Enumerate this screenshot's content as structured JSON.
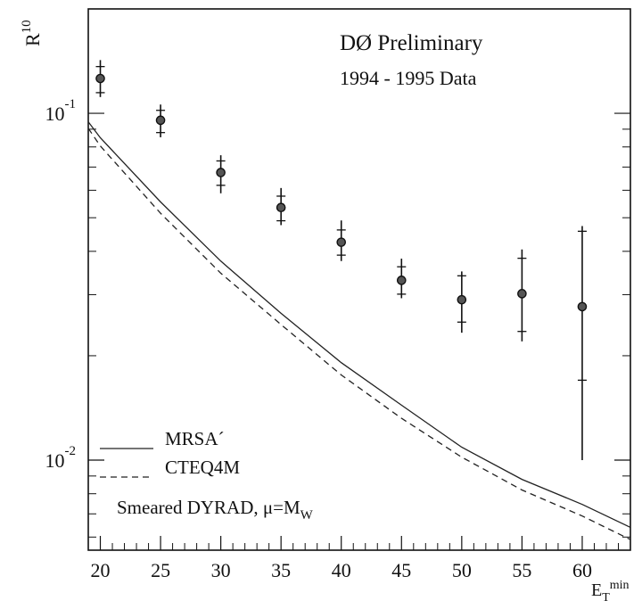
{
  "chart_data": {
    "type": "scatter",
    "title": "DØ Preliminary",
    "subtitle": "1994 - 1995 Data",
    "xlabel": "E",
    "xlabel_sub": "T",
    "xlabel_sup": "min",
    "ylabel": "R",
    "ylabel_sup": "10",
    "y_scale": "log",
    "xlim": [
      19,
      64
    ],
    "ylim": [
      0.0055,
      0.2
    ],
    "x_ticks": [
      20,
      25,
      30,
      35,
      40,
      45,
      50,
      55,
      60
    ],
    "y_ticks": [
      {
        "value": 0.1,
        "base": "10",
        "exp": "-1"
      },
      {
        "value": 0.01,
        "base": "10",
        "exp": "-2"
      }
    ],
    "grid": false,
    "series": [
      {
        "name": "DØ Preliminary 1994 - 1995 Data",
        "kind": "points_with_errors",
        "x": [
          20,
          25,
          30,
          35,
          40,
          45,
          50,
          55,
          60
        ],
        "y": [
          0.126,
          0.0955,
          0.0675,
          0.0535,
          0.0425,
          0.033,
          0.029,
          0.0302,
          0.0277
        ],
        "stat_err_low": [
          0.0113,
          0.0075,
          0.0055,
          0.0045,
          0.0035,
          0.0029,
          0.004,
          0.0067,
          0.0107
        ],
        "stat_err_high": [
          0.0104,
          0.0065,
          0.0054,
          0.0042,
          0.0036,
          0.0031,
          0.005,
          0.008,
          0.018
        ],
        "total_err_low": [
          0.0146,
          0.0102,
          0.0087,
          0.0059,
          0.005,
          0.0037,
          0.0057,
          0.0082,
          0.0177
        ],
        "total_err_high": [
          0.0164,
          0.0105,
          0.0082,
          0.0074,
          0.0066,
          0.0051,
          0.006,
          0.0103,
          0.0196
        ]
      },
      {
        "name": "MRSA´",
        "kind": "line",
        "style": "solid",
        "x": [
          19,
          20,
          25,
          30,
          35,
          40,
          45,
          50,
          55,
          60,
          64
        ],
        "y": [
          0.0945,
          0.085,
          0.0555,
          0.0375,
          0.0265,
          0.0191,
          0.0144,
          0.0109,
          0.0088,
          0.00745,
          0.0064
        ]
      },
      {
        "name": "CTEQ4M",
        "kind": "line",
        "style": "dashed",
        "x": [
          19,
          20,
          25,
          30,
          35,
          40,
          45,
          50,
          55,
          60,
          64
        ],
        "y": [
          0.0905,
          0.0805,
          0.0515,
          0.0346,
          0.0246,
          0.0176,
          0.0132,
          0.0102,
          0.0082,
          0.0069,
          0.0059
        ]
      }
    ],
    "legend": {
      "placement": "bottom-left",
      "entries": [
        {
          "label": "MRSA´",
          "style": "solid"
        },
        {
          "label": "CTEQ4M",
          "style": "dashed"
        }
      ],
      "note": "Smeared DYRAD, μ=M",
      "note_sub": "W"
    }
  }
}
